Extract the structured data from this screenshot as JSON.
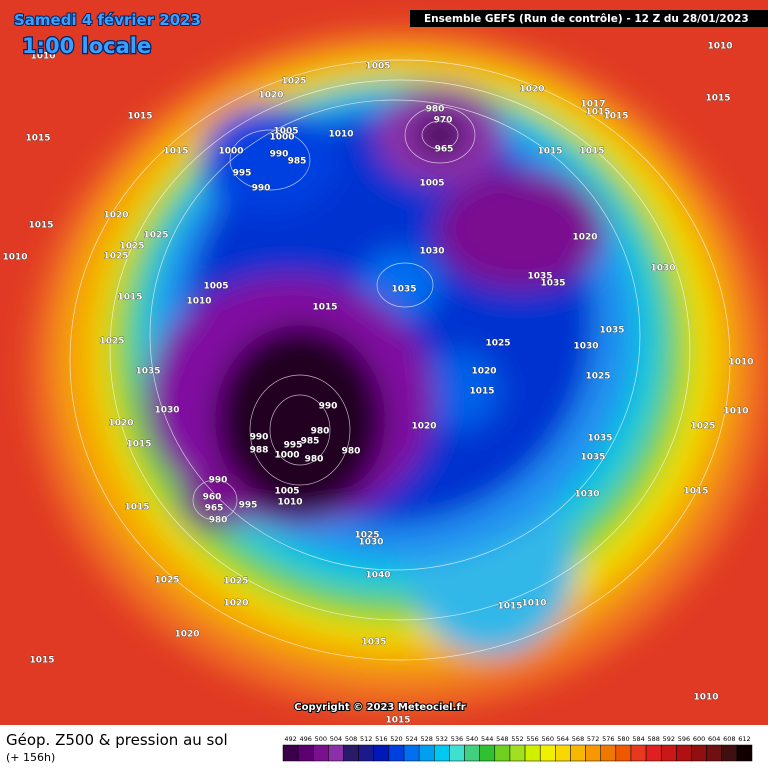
{
  "header": {
    "date": "Samedi 4 février 2023",
    "time": "1:00 locale",
    "run": "Ensemble GEFS  (Run de contrôle)  -  12 Z du 28/01/2023"
  },
  "copyright": "Copyright © 2023 Meteociel.fr",
  "footer": {
    "title": "Géop. Z500 & pression au sol",
    "lead": "(+ 156h)"
  },
  "scale": {
    "values": [
      492,
      496,
      500,
      504,
      508,
      512,
      516,
      520,
      524,
      528,
      532,
      536,
      540,
      544,
      548,
      552,
      556,
      560,
      564,
      568,
      572,
      576,
      580,
      584,
      588,
      592,
      596,
      600,
      604,
      608,
      612
    ],
    "colors": [
      "#3a0048",
      "#5a0070",
      "#7a1090",
      "#8c30a8",
      "#2a1a6a",
      "#1a1a8c",
      "#0018b8",
      "#0040e0",
      "#0070f0",
      "#00a0f0",
      "#00c8f0",
      "#40e0d0",
      "#40d080",
      "#30c030",
      "#70d020",
      "#a0e020",
      "#d0f000",
      "#f0f000",
      "#f8d800",
      "#f8b800",
      "#f89800",
      "#f07800",
      "#f05800",
      "#e83820",
      "#e02020",
      "#c81818",
      "#b01010",
      "#901010",
      "#701010",
      "#401010",
      "#100000"
    ]
  },
  "isobar_labels": [
    1010,
    1005,
    1010,
    1025,
    1020,
    1020,
    1015,
    1015,
    1017,
    1015,
    1015,
    980,
    970,
    1005,
    1000,
    1010,
    1015,
    1015,
    1000,
    990,
    985,
    965,
    1015,
    1015,
    995,
    990,
    1005,
    1020,
    1025,
    1025,
    1020,
    1015,
    1010,
    1025,
    1030,
    1030,
    1035,
    1035,
    1005,
    1035,
    1015,
    1010,
    1015,
    1035,
    1025,
    1025,
    1030,
    1010,
    1035,
    1020,
    1025,
    1015,
    1030,
    990,
    1010,
    1020,
    1020,
    1025,
    980,
    990,
    985,
    995,
    988,
    1000,
    980,
    980,
    1035,
    1015,
    1035,
    990,
    1005,
    1030,
    1015,
    1010,
    995,
    960,
    965,
    980,
    1015,
    1025,
    1030,
    1025,
    1025,
    1040,
    1020,
    1015,
    1010,
    1020,
    1035,
    1015,
    1010,
    1015
  ]
}
